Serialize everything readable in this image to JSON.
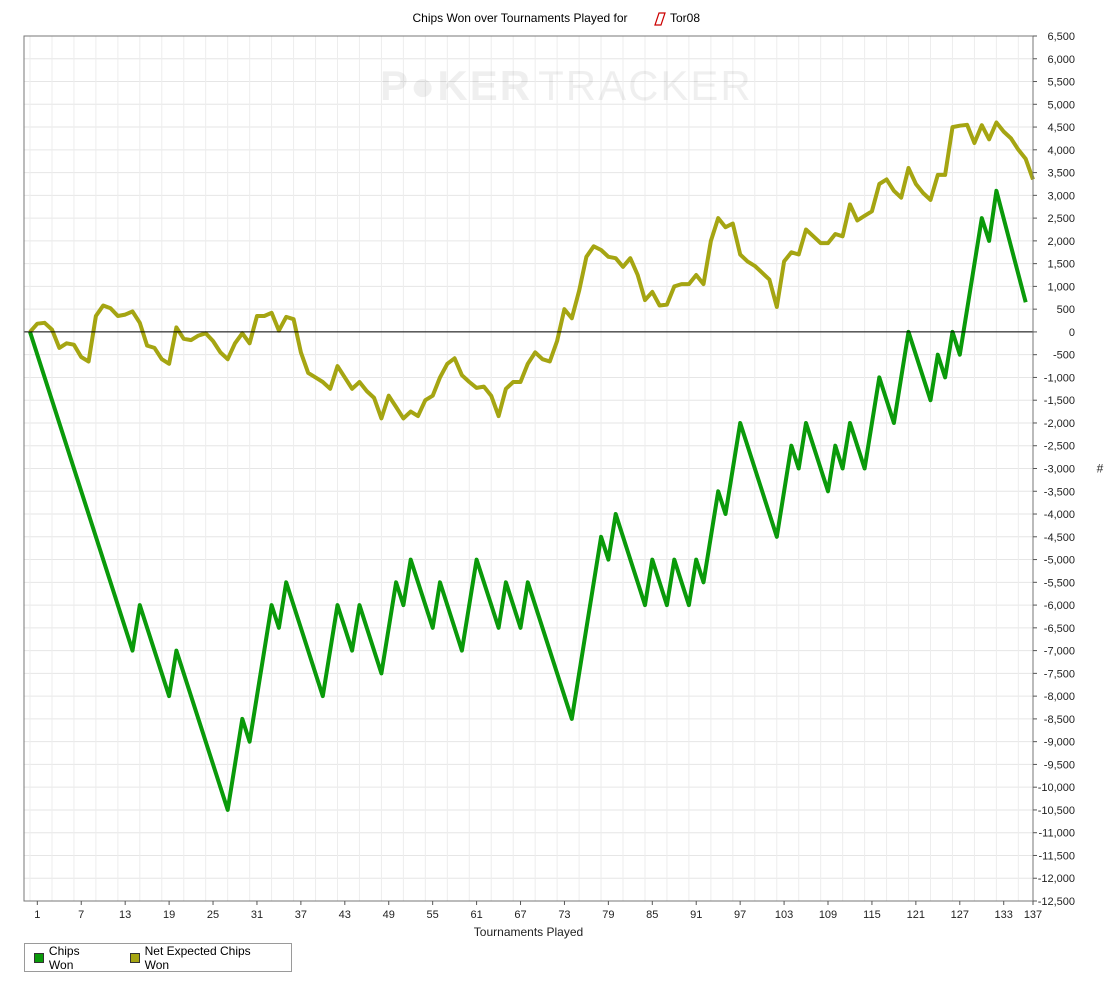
{
  "chart_data": {
    "type": "line",
    "title_prefix": "Chips Won over Tournaments Played for",
    "player": "Tor08",
    "watermark": {
      "brand_part1": "P",
      "brand_part2": "KER",
      "brand_part3": "TRACKER"
    },
    "xlabel": "Tournaments Played",
    "ylabel": "#",
    "xlim": [
      0,
      137
    ],
    "ylim": [
      -12500,
      6500
    ],
    "ytick_step": 500,
    "xticks": [
      1,
      7,
      13,
      19,
      25,
      31,
      37,
      43,
      49,
      55,
      61,
      67,
      73,
      79,
      85,
      91,
      97,
      103,
      109,
      115,
      121,
      127,
      133,
      137
    ],
    "grid": true,
    "legend_position": "bottom-left",
    "series": [
      {
        "name": "Chips Won",
        "color": "#0a9a0a",
        "points": [
          [
            0,
            0
          ],
          [
            14,
            -7000
          ],
          [
            15,
            -6000
          ],
          [
            19,
            -8000
          ],
          [
            20,
            -7000
          ],
          [
            27,
            -10500
          ],
          [
            29,
            -8500
          ],
          [
            30,
            -9000
          ],
          [
            33,
            -6000
          ],
          [
            34,
            -6500
          ],
          [
            35,
            -5500
          ],
          [
            40,
            -8000
          ],
          [
            42,
            -6000
          ],
          [
            44,
            -7000
          ],
          [
            45,
            -6000
          ],
          [
            48,
            -7500
          ],
          [
            50,
            -5500
          ],
          [
            51,
            -6000
          ],
          [
            52,
            -5000
          ],
          [
            55,
            -6500
          ],
          [
            56,
            -5500
          ],
          [
            59,
            -7000
          ],
          [
            61,
            -5000
          ],
          [
            64,
            -6500
          ],
          [
            65,
            -5500
          ],
          [
            67,
            -6500
          ],
          [
            68,
            -5500
          ],
          [
            74,
            -8500
          ],
          [
            78,
            -4500
          ],
          [
            79,
            -5000
          ],
          [
            80,
            -4000
          ],
          [
            84,
            -6000
          ],
          [
            85,
            -5000
          ],
          [
            87,
            -6000
          ],
          [
            88,
            -5000
          ],
          [
            90,
            -6000
          ],
          [
            91,
            -5000
          ],
          [
            92,
            -5500
          ],
          [
            94,
            -3500
          ],
          [
            95,
            -4000
          ],
          [
            97,
            -2000
          ],
          [
            102,
            -4500
          ],
          [
            104,
            -2500
          ],
          [
            105,
            -3000
          ],
          [
            106,
            -2000
          ],
          [
            109,
            -3500
          ],
          [
            110,
            -2500
          ],
          [
            111,
            -3000
          ],
          [
            112,
            -2000
          ],
          [
            114,
            -3000
          ],
          [
            116,
            -1000
          ],
          [
            118,
            -2000
          ],
          [
            120,
            0
          ],
          [
            123,
            -1500
          ],
          [
            124,
            -500
          ],
          [
            125,
            -1000
          ],
          [
            126,
            0
          ],
          [
            127,
            -500
          ],
          [
            130,
            2500
          ],
          [
            131,
            2000
          ],
          [
            132,
            3100
          ],
          [
            136,
            650
          ]
        ]
      },
      {
        "name": "Net Expected Chips Won",
        "color": "#a5a512",
        "points": [
          [
            0,
            0
          ],
          [
            1,
            180
          ],
          [
            2,
            200
          ],
          [
            3,
            50
          ],
          [
            4,
            -350
          ],
          [
            5,
            -250
          ],
          [
            6,
            -280
          ],
          [
            7,
            -550
          ],
          [
            8,
            -650
          ],
          [
            9,
            350
          ],
          [
            10,
            580
          ],
          [
            11,
            520
          ],
          [
            12,
            350
          ],
          [
            13,
            380
          ],
          [
            14,
            450
          ],
          [
            15,
            200
          ],
          [
            16,
            -300
          ],
          [
            17,
            -350
          ],
          [
            18,
            -600
          ],
          [
            19,
            -700
          ],
          [
            20,
            100
          ],
          [
            21,
            -150
          ],
          [
            22,
            -180
          ],
          [
            23,
            -80
          ],
          [
            24,
            -30
          ],
          [
            25,
            -200
          ],
          [
            26,
            -450
          ],
          [
            27,
            -600
          ],
          [
            28,
            -250
          ],
          [
            29,
            -30
          ],
          [
            30,
            -250
          ],
          [
            31,
            350
          ],
          [
            32,
            350
          ],
          [
            33,
            420
          ],
          [
            34,
            30
          ],
          [
            35,
            330
          ],
          [
            36,
            280
          ],
          [
            37,
            -450
          ],
          [
            38,
            -900
          ],
          [
            39,
            -1000
          ],
          [
            40,
            -1100
          ],
          [
            41,
            -1250
          ],
          [
            42,
            -750
          ],
          [
            43,
            -1000
          ],
          [
            44,
            -1250
          ],
          [
            45,
            -1100
          ],
          [
            46,
            -1300
          ],
          [
            47,
            -1450
          ],
          [
            48,
            -1900
          ],
          [
            49,
            -1400
          ],
          [
            50,
            -1650
          ],
          [
            51,
            -1900
          ],
          [
            52,
            -1750
          ],
          [
            53,
            -1850
          ],
          [
            54,
            -1500
          ],
          [
            55,
            -1400
          ],
          [
            56,
            -1000
          ],
          [
            57,
            -700
          ],
          [
            58,
            -580
          ],
          [
            59,
            -950
          ],
          [
            60,
            -1100
          ],
          [
            61,
            -1230
          ],
          [
            62,
            -1200
          ],
          [
            63,
            -1400
          ],
          [
            64,
            -1850
          ],
          [
            65,
            -1250
          ],
          [
            66,
            -1100
          ],
          [
            67,
            -1100
          ],
          [
            68,
            -700
          ],
          [
            69,
            -450
          ],
          [
            70,
            -600
          ],
          [
            71,
            -650
          ],
          [
            72,
            -200
          ],
          [
            73,
            500
          ],
          [
            74,
            300
          ],
          [
            75,
            900
          ],
          [
            76,
            1650
          ],
          [
            77,
            1880
          ],
          [
            78,
            1800
          ],
          [
            79,
            1650
          ],
          [
            80,
            1620
          ],
          [
            81,
            1430
          ],
          [
            82,
            1620
          ],
          [
            83,
            1250
          ],
          [
            84,
            700
          ],
          [
            85,
            880
          ],
          [
            86,
            580
          ],
          [
            87,
            600
          ],
          [
            88,
            1000
          ],
          [
            89,
            1050
          ],
          [
            90,
            1050
          ],
          [
            91,
            1250
          ],
          [
            92,
            1050
          ],
          [
            93,
            2000
          ],
          [
            94,
            2500
          ],
          [
            95,
            2300
          ],
          [
            96,
            2380
          ],
          [
            97,
            1700
          ],
          [
            98,
            1550
          ],
          [
            99,
            1450
          ],
          [
            100,
            1300
          ],
          [
            101,
            1150
          ],
          [
            102,
            550
          ],
          [
            103,
            1550
          ],
          [
            104,
            1750
          ],
          [
            105,
            1700
          ],
          [
            106,
            2250
          ],
          [
            107,
            2100
          ],
          [
            108,
            1950
          ],
          [
            109,
            1950
          ],
          [
            110,
            2150
          ],
          [
            111,
            2100
          ],
          [
            112,
            2800
          ],
          [
            113,
            2450
          ],
          [
            114,
            2550
          ],
          [
            115,
            2650
          ],
          [
            116,
            3250
          ],
          [
            117,
            3350
          ],
          [
            118,
            3100
          ],
          [
            119,
            2950
          ],
          [
            120,
            3600
          ],
          [
            121,
            3250
          ],
          [
            122,
            3050
          ],
          [
            123,
            2900
          ],
          [
            124,
            3450
          ],
          [
            125,
            3450
          ],
          [
            126,
            4500
          ],
          [
            127,
            4530
          ],
          [
            128,
            4550
          ],
          [
            129,
            4150
          ],
          [
            130,
            4540
          ],
          [
            131,
            4230
          ],
          [
            132,
            4600
          ],
          [
            133,
            4400
          ],
          [
            134,
            4250
          ],
          [
            135,
            4000
          ],
          [
            136,
            3800
          ],
          [
            137,
            3350
          ]
        ]
      }
    ]
  }
}
